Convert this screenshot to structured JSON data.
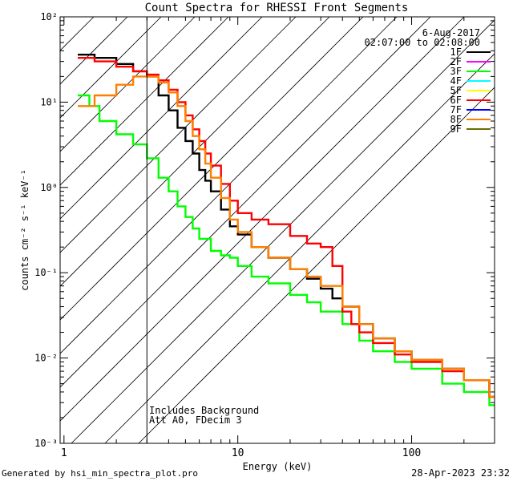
{
  "chart_data": {
    "type": "line",
    "title": "Count Spectra for RHESSI Front Segments",
    "xlabel": "Energy (keV)",
    "ylabel": "counts cm⁻² s⁻¹ keV⁻¹",
    "xscale": "log",
    "yscale": "log",
    "xlim": [
      0.95,
      300
    ],
    "ylim": [
      0.001,
      100
    ],
    "x_ticks": [
      1,
      10,
      100
    ],
    "x_tick_labels": [
      "1",
      "10",
      "100"
    ],
    "y_ticks": [
      0.001,
      0.01,
      0.1,
      1,
      10,
      100
    ],
    "y_tick_labels": [
      "10⁻³",
      "10⁻²",
      "10⁻¹",
      "10⁰",
      "10¹",
      "10²"
    ],
    "date": "6-Aug-2017",
    "time_range": "02:07:00 to 02:08:00",
    "annotations": [
      "Includes Background",
      "Att A0, FDecim 3"
    ],
    "hatched_region": {
      "x_min": 0.95,
      "x_max": 3.0
    },
    "legend_position": "top-right",
    "legend": [
      {
        "name": "1F",
        "color": "#000000"
      },
      {
        "name": "2F",
        "color": "#ff00ff"
      },
      {
        "name": "3F",
        "color": "#00ff00"
      },
      {
        "name": "4F",
        "color": "#00ffff"
      },
      {
        "name": "5F",
        "color": "#ffff00"
      },
      {
        "name": "6F",
        "color": "#ff0000"
      },
      {
        "name": "7F",
        "color": "#0000ff"
      },
      {
        "name": "8F",
        "color": "#ff8000"
      },
      {
        "name": "9F",
        "color": "#6b6b00"
      }
    ],
    "series": [
      {
        "name": "1F",
        "color": "#000000",
        "x": [
          1.2,
          1.5,
          2.0,
          2.5,
          3.0,
          3.5,
          4.0,
          4.5,
          5.0,
          5.5,
          6.0,
          6.5,
          7.0,
          8.0,
          9.0,
          10,
          12,
          15,
          20,
          25,
          30,
          35,
          40,
          50,
          60,
          80,
          100,
          150,
          200,
          280
        ],
        "y": [
          36,
          33,
          28,
          23,
          20,
          12,
          8,
          5,
          3.5,
          2.5,
          1.6,
          1.2,
          0.9,
          0.55,
          0.35,
          0.28,
          0.2,
          0.15,
          0.11,
          0.085,
          0.065,
          0.05,
          0.04,
          0.025,
          0.017,
          0.012,
          0.0095,
          0.0075,
          0.0055,
          0.0035
        ]
      },
      {
        "name": "3F",
        "color": "#00ff00",
        "x": [
          1.2,
          1.4,
          1.6,
          2.0,
          2.5,
          3.0,
          3.5,
          4.0,
          4.5,
          5.0,
          5.5,
          6.0,
          7.0,
          8.0,
          9.0,
          10,
          12,
          15,
          20,
          25,
          30,
          40,
          50,
          60,
          80,
          100,
          150,
          200,
          280
        ],
        "y": [
          12,
          9,
          6,
          4.2,
          3.2,
          2.2,
          1.3,
          0.9,
          0.6,
          0.45,
          0.33,
          0.25,
          0.18,
          0.16,
          0.15,
          0.12,
          0.09,
          0.075,
          0.055,
          0.045,
          0.035,
          0.025,
          0.016,
          0.012,
          0.009,
          0.0075,
          0.005,
          0.004,
          0.0028
        ]
      },
      {
        "name": "6F",
        "color": "#ff0000",
        "x": [
          1.2,
          1.5,
          2.0,
          2.5,
          3.0,
          3.5,
          4.0,
          4.5,
          5.0,
          5.5,
          6.0,
          6.5,
          7.0,
          8.0,
          9.0,
          10,
          12,
          15,
          20,
          25,
          30,
          35,
          40,
          45,
          50,
          60,
          80,
          100,
          150,
          200,
          280
        ],
        "y": [
          33,
          30,
          26,
          23,
          21,
          18,
          14,
          10,
          7,
          4.8,
          3.5,
          2.5,
          1.8,
          1.1,
          0.7,
          0.5,
          0.42,
          0.37,
          0.27,
          0.22,
          0.2,
          0.12,
          0.035,
          0.025,
          0.02,
          0.015,
          0.011,
          0.009,
          0.007,
          0.0055,
          0.0035
        ]
      },
      {
        "name": "8F",
        "color": "#ff8000",
        "x": [
          1.2,
          1.5,
          2.0,
          2.5,
          3.0,
          3.5,
          4.0,
          4.5,
          5.0,
          5.5,
          6.0,
          6.5,
          7.0,
          8.0,
          9.0,
          10,
          12,
          15,
          20,
          25,
          30,
          40,
          50,
          60,
          80,
          100,
          150,
          200,
          280
        ],
        "y": [
          9,
          12,
          16,
          20,
          20,
          17,
          13,
          9,
          6,
          4,
          2.8,
          1.9,
          1.3,
          0.75,
          0.42,
          0.3,
          0.2,
          0.15,
          0.11,
          0.09,
          0.07,
          0.04,
          0.025,
          0.017,
          0.012,
          0.0095,
          0.0075,
          0.0055,
          0.0035
        ]
      }
    ]
  },
  "footer": {
    "generated_by": "Generated by hsi_min_spectra_plot.pro",
    "timestamp": "28-Apr-2023 23:32"
  }
}
